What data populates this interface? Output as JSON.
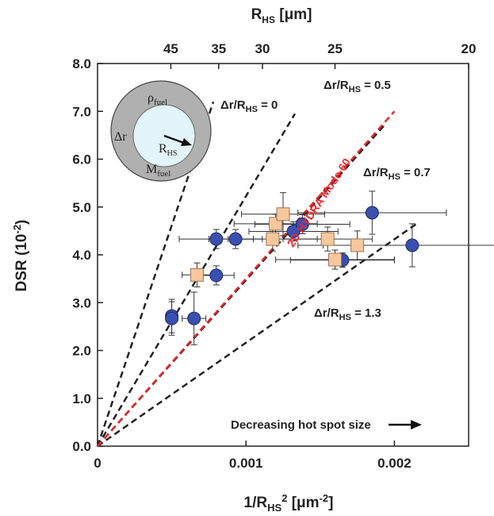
{
  "chart_data": {
    "type": "scatter",
    "xlabel": "1/R",
    "xlabel_sub": "HS",
    "xlabel_sup": "2",
    "xlabel_unit": " [μm",
    "xlabel_unit_sup": "-2",
    "xlabel_end": "]",
    "ylabel": "DSR (10",
    "ylabel_sup": "-2",
    "ylabel_end": ")",
    "top_label": "R",
    "top_label_sub": "HS",
    "top_label_unit": " [μm]",
    "xlim": [
      0,
      0.0025
    ],
    "ylim": [
      0,
      8.0
    ],
    "x_ticks": [
      0,
      0.001,
      0.002
    ],
    "x_tick_labels": [
      "0",
      "0.001",
      "0.002"
    ],
    "y_ticks": [
      0,
      1,
      2,
      3,
      4,
      5,
      6,
      7,
      8
    ],
    "y_tick_labels": [
      "0.0",
      "1.0",
      "2.0",
      "3.0",
      "4.0",
      "5.0",
      "6.0",
      "7.0",
      "8.0"
    ],
    "top_ticks": [
      45,
      35,
      30,
      25,
      20
    ],
    "top_tick_labels": [
      "45",
      "35",
      "30",
      "25",
      "20"
    ],
    "grid": false,
    "series": [
      {
        "marker": "circle",
        "color": "#3a4fb0",
        "points": [
          {
            "x": 0.0005,
            "y": 2.72,
            "xerr": 3e-05,
            "yerr": 0.35
          },
          {
            "x": 0.0005,
            "y": 2.67,
            "xerr": 4e-05,
            "yerr": 0.35
          },
          {
            "x": 0.00065,
            "y": 2.67,
            "xerr": 8e-05,
            "yerr": 0.55
          },
          {
            "x": 0.0008,
            "y": 3.57,
            "xerr": 0.00012,
            "yerr": 0.2
          },
          {
            "x": 0.0008,
            "y": 4.33,
            "xerr": 0.00025,
            "yerr": 0.2
          },
          {
            "x": 0.00093,
            "y": 4.33,
            "xerr": 0.00018,
            "yerr": 0.2
          },
          {
            "x": 0.00132,
            "y": 4.49,
            "xerr": 0.0003,
            "yerr": 0.2
          },
          {
            "x": 0.00138,
            "y": 4.64,
            "xerr": 0.00032,
            "yerr": 0.2
          },
          {
            "x": 0.00165,
            "y": 3.89,
            "xerr": 0.00035,
            "yerr": 0.15
          },
          {
            "x": 0.00185,
            "y": 4.88,
            "xerr": 0.0005,
            "yerr": 0.45
          },
          {
            "x": 0.00212,
            "y": 4.2,
            "xerr": 0.0006,
            "yerr": 0.45
          }
        ]
      },
      {
        "marker": "square",
        "color": "#f8c89c",
        "points": [
          {
            "x": 0.00067,
            "y": 3.58,
            "xerr": 0.0001,
            "yerr": 0.25
          },
          {
            "x": 0.00118,
            "y": 4.33,
            "xerr": 0.0003,
            "yerr": 0.25
          },
          {
            "x": 0.0012,
            "y": 4.65,
            "xerr": 0.00028,
            "yerr": 0.2
          },
          {
            "x": 0.00125,
            "y": 4.85,
            "xerr": 0.00028,
            "yerr": 0.45
          },
          {
            "x": 0.00155,
            "y": 4.33,
            "xerr": 0.0003,
            "yerr": 0.25
          },
          {
            "x": 0.0016,
            "y": 3.9,
            "xerr": 0.0004,
            "yerr": 0.2
          },
          {
            "x": 0.00175,
            "y": 4.2,
            "xerr": 0.0004,
            "yerr": 0.3
          }
        ]
      }
    ],
    "lines": [
      {
        "label": "Δr/R",
        "label_sub": "HS",
        "label_end": " = 0",
        "color": "#222222",
        "x2": 0.00078,
        "y2": 7.2
      },
      {
        "label": "Δr/R",
        "label_sub": "HS",
        "label_end": " = 0.5",
        "color": "#222222",
        "x2": 0.00133,
        "y2": 6.95
      },
      {
        "label": "Δr/R",
        "label_sub": "HS",
        "label_end": " = 0.7",
        "color": "#222222",
        "x2": 0.00193,
        "y2": 6.7
      },
      {
        "label": "Δr/R",
        "label_sub": "HS",
        "label_end": " = 1.3",
        "color": "#222222",
        "x2": 0.00215,
        "y2": 4.65
      },
      {
        "label": "2D HYDRA Mode 60",
        "color": "#e8282b",
        "x2": 0.002,
        "y2": 7.0
      }
    ],
    "annotations": {
      "arrow_text": "Decreasing hot spot size",
      "inset_rho": "ρ",
      "inset_rho_sub": "fuel",
      "inset_dr": "Δr",
      "inset_r": "R",
      "inset_r_sub": "HS",
      "inset_m": "M",
      "inset_m_sub": "fuel"
    }
  }
}
